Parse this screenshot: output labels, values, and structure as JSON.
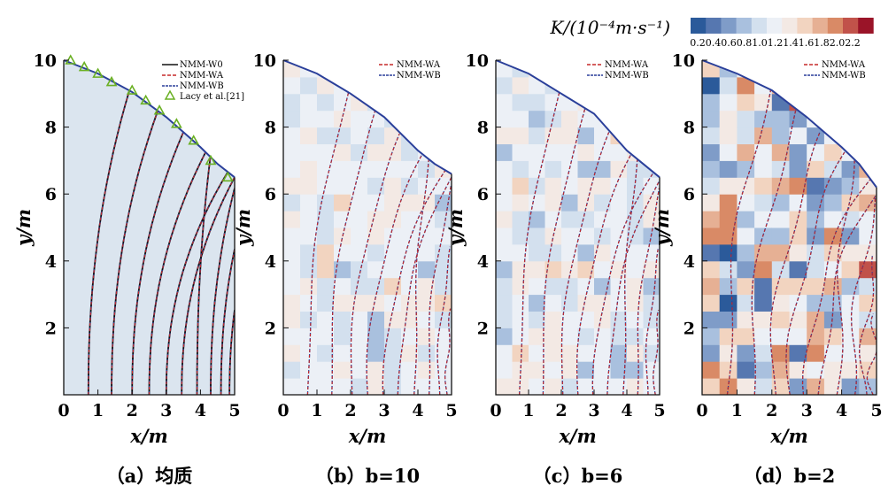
{
  "colorbar": {
    "title": "K/(10⁻⁴m·s⁻¹)",
    "ticks": [
      "0.2",
      "0.4",
      "0.6",
      "0.8",
      "1.0",
      "1.2",
      "1.4",
      "1.6",
      "1.8",
      "2.0",
      "2.2"
    ],
    "colors": [
      "#2b5a9a",
      "#5677b0",
      "#7f9cc8",
      "#a9c0de",
      "#d3e0ee",
      "#ecf0f6",
      "#f3e9e4",
      "#f2d4c0",
      "#e6b094",
      "#d98a66",
      "#c1524a",
      "#9a1428"
    ]
  },
  "chart_data": [
    {
      "type": "contour",
      "panel": "a",
      "caption": "（a）均质",
      "xlabel": "x/m",
      "ylabel": "y/m",
      "xlim": [
        0,
        5
      ],
      "ylim": [
        0,
        10
      ],
      "xticks": [
        "0",
        "1",
        "2",
        "3",
        "4",
        "5"
      ],
      "yticks": [
        "2",
        "4",
        "6",
        "8",
        "10"
      ],
      "legend": [
        "NMM-W0",
        "NMM-WA",
        "NMM-WB",
        "Lacy et al.[21]"
      ],
      "legend_position": "top-right",
      "free_surface": [
        [
          0,
          10
        ],
        [
          1,
          9.6
        ],
        [
          2,
          9.05
        ],
        [
          3,
          8.3
        ],
        [
          4,
          7.4
        ],
        [
          4.5,
          6.9
        ],
        [
          5,
          6.5
        ]
      ],
      "lacy_points": [
        [
          0.2,
          10
        ],
        [
          0.6,
          9.8
        ],
        [
          1.0,
          9.6
        ],
        [
          1.4,
          9.35
        ],
        [
          2.0,
          9.1
        ],
        [
          2.4,
          8.8
        ],
        [
          2.8,
          8.5
        ],
        [
          3.3,
          8.1
        ],
        [
          3.8,
          7.6
        ],
        [
          4.3,
          7.0
        ],
        [
          4.8,
          6.5
        ]
      ],
      "heterogeneity": null
    },
    {
      "type": "contour",
      "panel": "b",
      "caption": "（b）b=10",
      "xlabel": "x/m",
      "ylabel": "y/m",
      "xlim": [
        0,
        5
      ],
      "ylim": [
        0,
        10
      ],
      "xticks": [
        "0",
        "1",
        "2",
        "3",
        "4",
        "5"
      ],
      "yticks": [
        "2",
        "4",
        "6",
        "8",
        "10"
      ],
      "legend": [
        "NMM-WA",
        "NMM-WB"
      ],
      "legend_position": "top-right",
      "free_surface": [
        [
          0,
          10
        ],
        [
          1,
          9.6
        ],
        [
          2,
          9.0
        ],
        [
          3,
          8.3
        ],
        [
          4,
          7.3
        ],
        [
          4.5,
          6.9
        ],
        [
          5,
          6.6
        ]
      ],
      "heterogeneity": 10
    },
    {
      "type": "contour",
      "panel": "c",
      "caption": "（c）b=6",
      "xlabel": "x/m",
      "ylabel": "y/m",
      "xlim": [
        0,
        5
      ],
      "ylim": [
        0,
        10
      ],
      "xticks": [
        "0",
        "1",
        "2",
        "3",
        "4",
        "5"
      ],
      "yticks": [
        "2",
        "4",
        "6",
        "8",
        "10"
      ],
      "legend": [
        "NMM-WA",
        "NMM-WB"
      ],
      "legend_position": "top-right",
      "free_surface": [
        [
          0,
          10
        ],
        [
          1,
          9.6
        ],
        [
          2,
          9.0
        ],
        [
          3,
          8.4
        ],
        [
          4,
          7.3
        ],
        [
          4.5,
          6.9
        ],
        [
          5,
          6.5
        ]
      ],
      "heterogeneity": 6
    },
    {
      "type": "contour",
      "panel": "d",
      "caption": "（d）b=2",
      "xlabel": "x/m",
      "ylabel": "y/m",
      "xlim": [
        0,
        5
      ],
      "ylim": [
        0,
        10
      ],
      "xticks": [
        "0",
        "1",
        "2",
        "3",
        "4",
        "5"
      ],
      "yticks": [
        "2",
        "4",
        "6",
        "8",
        "10"
      ],
      "legend": [
        "NMM-WA",
        "NMM-WB"
      ],
      "legend_position": "top-right",
      "free_surface": [
        [
          0,
          10
        ],
        [
          1,
          9.6
        ],
        [
          2,
          9.1
        ],
        [
          3,
          8.3
        ],
        [
          4,
          7.4
        ],
        [
          4.5,
          6.9
        ],
        [
          5,
          6.2
        ]
      ],
      "heterogeneity": 2
    }
  ]
}
